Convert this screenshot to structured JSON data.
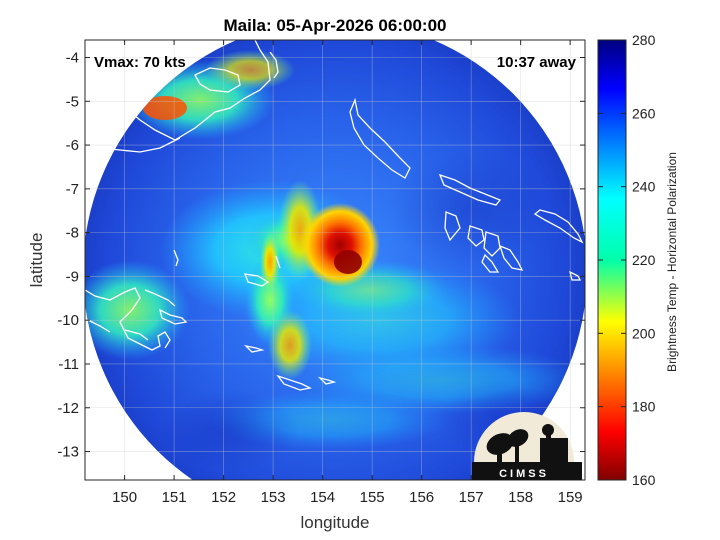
{
  "plot": {
    "title": "Maila: 05-Apr-2026 06:00:00",
    "xlabel": "longitude",
    "ylabel": "latitude",
    "vmax_text": "Vmax: 70 kts",
    "time_away_text": "10:37 away",
    "logo_text": "CIMSS"
  },
  "chart_data": {
    "type": "heatmap",
    "title": "Maila: 05-Apr-2026 06:00:00",
    "xlabel": "longitude",
    "ylabel": "latitude",
    "xlim": [
      149.2,
      159.3
    ],
    "ylim": [
      -13.65,
      -3.6
    ],
    "x_ticks": [
      150,
      151,
      152,
      153,
      154,
      155,
      156,
      157,
      158,
      159
    ],
    "x_tick_labels": [
      "150",
      "151",
      "152",
      "153",
      "154",
      "155",
      "156",
      "157",
      "158",
      "159"
    ],
    "y_ticks": [
      -4,
      -5,
      -6,
      -7,
      -8,
      -9,
      -10,
      -11,
      -12,
      -13
    ],
    "y_tick_labels": [
      "-4",
      "-5",
      "-6",
      "-7",
      "-8",
      "-9",
      "-10",
      "-11",
      "-12",
      "-13"
    ],
    "grid": true,
    "swath_center": [
      154.3,
      -8.6
    ],
    "storm_center": [
      154.45,
      -8.45
    ],
    "colorbar": {
      "label": "Brightness Temp - Horizontal Polarization",
      "range": [
        160,
        280
      ],
      "ticks": [
        280,
        260,
        240,
        220,
        200,
        180,
        160
      ],
      "tick_labels": [
        "280",
        "260",
        "240",
        "220",
        "200",
        "180",
        "160"
      ],
      "colormap": "jet"
    },
    "annotations": [
      "Vmax: 70 kts",
      "10:37 away"
    ]
  },
  "colors": {
    "background": "#ffffff",
    "cold_ocean": "#1f3fd6",
    "warm_core": "#a00000",
    "coast": "#ffffff",
    "grid": "#cccccc"
  }
}
